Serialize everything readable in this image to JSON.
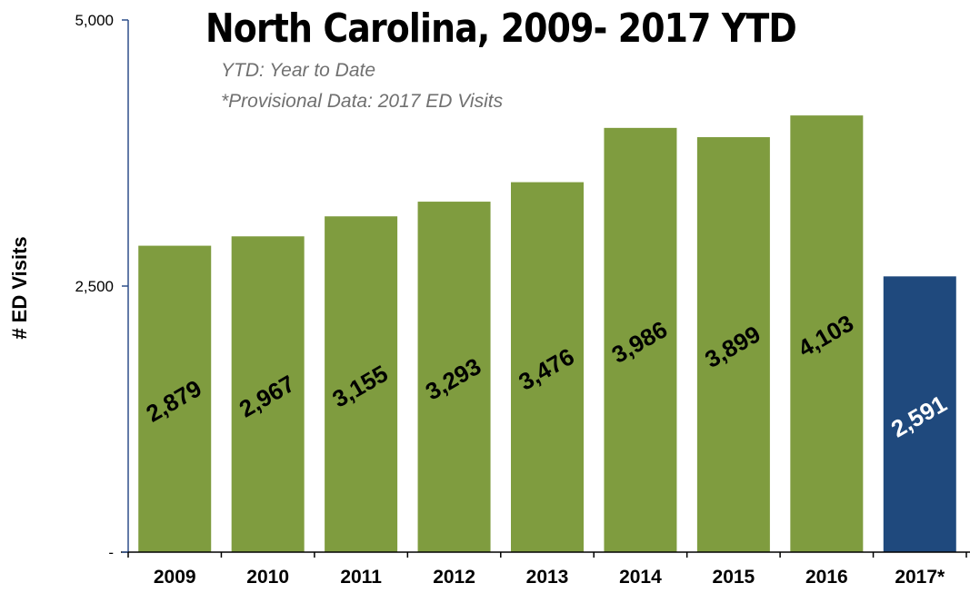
{
  "chart_data": {
    "type": "bar",
    "title": "North Carolina, 2009- 2017 YTD",
    "notes": [
      "YTD: Year to Date",
      "*Provisional Data: 2017 ED Visits"
    ],
    "xlabel": "",
    "ylabel": "# ED Visits",
    "ylim": [
      0,
      5000
    ],
    "yticks": [
      0,
      2500,
      5000
    ],
    "ytick_labels": [
      "-",
      "2,500",
      "5,000"
    ],
    "categories": [
      "2009",
      "2010",
      "2011",
      "2012",
      "2013",
      "2014",
      "2015",
      "2016",
      "2017*"
    ],
    "values": [
      2879,
      2967,
      3155,
      3293,
      3476,
      3986,
      3899,
      4103,
      2591
    ],
    "value_labels": [
      "2,879",
      "2,967",
      "3,155",
      "3,293",
      "3,476",
      "3,986",
      "3,899",
      "4,103",
      "2,591"
    ],
    "colors": [
      "#7f9c3f",
      "#7f9c3f",
      "#7f9c3f",
      "#7f9c3f",
      "#7f9c3f",
      "#7f9c3f",
      "#7f9c3f",
      "#7f9c3f",
      "#1f497d"
    ],
    "label_colors": [
      "#000000",
      "#000000",
      "#000000",
      "#000000",
      "#000000",
      "#000000",
      "#000000",
      "#000000",
      "#ffffff"
    ],
    "axis_color": "#2e4f8a",
    "grid": false,
    "legend": "none"
  }
}
